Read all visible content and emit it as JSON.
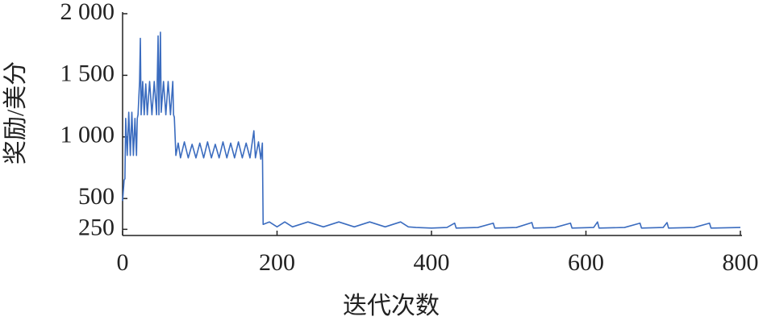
{
  "chart_data": {
    "type": "line",
    "xlabel": "迭代次数",
    "ylabel": "奖励/美分",
    "xlim": [
      0,
      800
    ],
    "xticks": [
      0,
      200,
      400,
      600,
      800
    ],
    "ylim": [
      200,
      2000
    ],
    "yticks": [
      250,
      500,
      {
        "value": 1000,
        "label": "1 000"
      },
      {
        "value": 1500,
        "label": "1 500"
      },
      {
        "value": 2000,
        "label": "2 000"
      }
    ],
    "series": [
      {
        "color": "#3b6cbf",
        "x": [
          0,
          2,
          3,
          4,
          6,
          8,
          10,
          12,
          14,
          16,
          18,
          19,
          20,
          22,
          23,
          24,
          26,
          28,
          30,
          32,
          35,
          38,
          41,
          44,
          46,
          47,
          49,
          50,
          53,
          56,
          59,
          62,
          65,
          66,
          67,
          69,
          72,
          75,
          80,
          85,
          90,
          95,
          100,
          105,
          110,
          115,
          120,
          125,
          130,
          135,
          140,
          145,
          150,
          155,
          160,
          165,
          170,
          172,
          176,
          179,
          181,
          182,
          190,
          200,
          210,
          220,
          240,
          260,
          280,
          300,
          320,
          340,
          360,
          370,
          380,
          400,
          420,
          430,
          432,
          460,
          480,
          482,
          510,
          530,
          532,
          560,
          580,
          582,
          610,
          615,
          617,
          650,
          670,
          672,
          700,
          705,
          707,
          740,
          760,
          762,
          800
        ],
        "values": [
          480,
          650,
          660,
          1150,
          850,
          1200,
          850,
          1200,
          850,
          1150,
          850,
          1150,
          1180,
          1450,
          1800,
          1180,
          1450,
          1180,
          1430,
          1180,
          1450,
          1180,
          1450,
          1180,
          1820,
          1180,
          1850,
          1200,
          1450,
          1180,
          1450,
          1180,
          1450,
          1180,
          1160,
          850,
          950,
          830,
          960,
          830,
          940,
          830,
          950,
          830,
          960,
          830,
          940,
          830,
          960,
          830,
          950,
          830,
          960,
          830,
          950,
          830,
          1050,
          830,
          960,
          820,
          950,
          290,
          310,
          270,
          310,
          270,
          310,
          270,
          310,
          270,
          310,
          270,
          310,
          270,
          265,
          260,
          265,
          300,
          260,
          265,
          300,
          260,
          265,
          305,
          260,
          265,
          300,
          260,
          265,
          310,
          260,
          265,
          300,
          260,
          265,
          305,
          260,
          265,
          300,
          260,
          265
        ]
      }
    ]
  }
}
